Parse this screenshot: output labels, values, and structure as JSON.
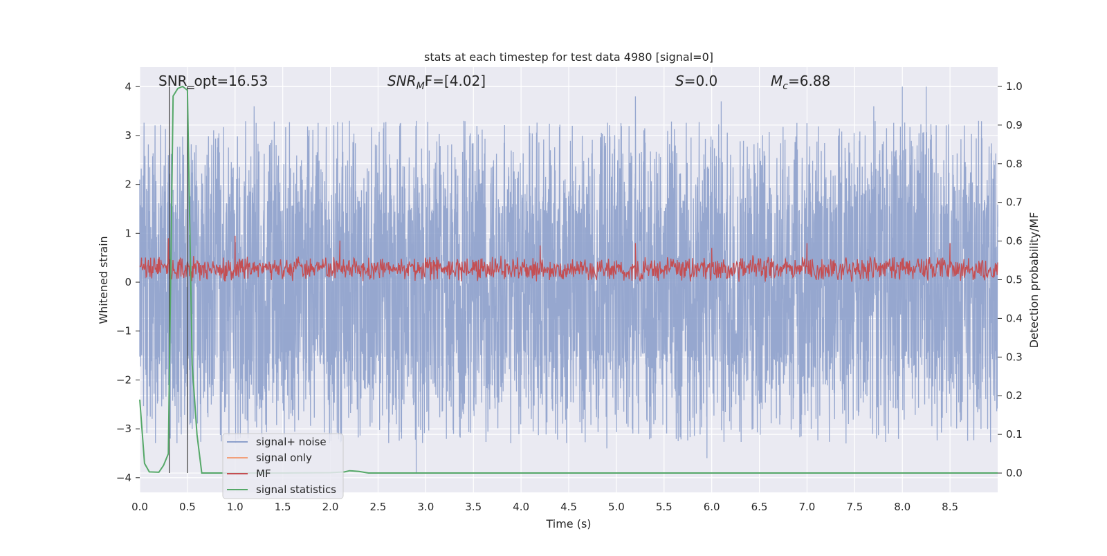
{
  "chart_data": {
    "type": "line",
    "title": "stats at each timestep for test data 4980 [signal=0]",
    "xlabel": "Time (s)",
    "ylabel": "Whitened strain",
    "y2label": "Detection probability/MF",
    "xlim": [
      0.0,
      9.0
    ],
    "ylim": [
      -4.3,
      4.4
    ],
    "y2lim": [
      -0.05,
      1.05
    ],
    "grid": true,
    "legend_position": "lower-left",
    "x_ticks": [
      "0.0",
      "0.5",
      "1.0",
      "1.5",
      "2.0",
      "2.5",
      "3.0",
      "3.5",
      "4.0",
      "4.5",
      "5.0",
      "5.5",
      "6.0",
      "6.5",
      "7.0",
      "7.5",
      "8.0",
      "8.5"
    ],
    "y_ticks": [
      "4",
      "3",
      "2",
      "1",
      "0",
      "−1",
      "−2",
      "−3",
      "−4"
    ],
    "y2_ticks": [
      "1.0",
      "0.9",
      "0.8",
      "0.7",
      "0.6",
      "0.5",
      "0.4",
      "0.3",
      "0.2",
      "0.1",
      "0.0"
    ],
    "annotations": {
      "snr_opt": "SNR_opt=16.53",
      "snr_mf_base": "SNR",
      "snr_mf_sub": "M",
      "snr_mf_tail": "F=[4.02]",
      "s_var": "S",
      "s_val": "=0.0",
      "mc_var": "M",
      "mc_sub": "c",
      "mc_val": "=6.88"
    },
    "vertical_lines_x": [
      0.31,
      0.5
    ],
    "series": [
      {
        "name": "signal+ noise",
        "color": "#8da0cb",
        "description_range": [
          -3.9,
          4.0
        ],
        "peak_samples": [
          [
            0.0,
            2.1
          ],
          [
            0.3,
            2.6
          ],
          [
            0.55,
            -3.0
          ],
          [
            1.2,
            3.6
          ],
          [
            2.2,
            3.3
          ],
          [
            2.9,
            -3.9
          ],
          [
            3.4,
            3.3
          ],
          [
            4.9,
            -3.4
          ],
          [
            5.2,
            3.8
          ],
          [
            5.95,
            -3.6
          ],
          [
            6.1,
            3.7
          ],
          [
            7.7,
            3.6
          ],
          [
            8.0,
            4.0
          ],
          [
            8.25,
            4.0
          ],
          [
            8.8,
            3.3
          ]
        ]
      },
      {
        "name": "signal only",
        "color": "#f2a07b",
        "values": []
      },
      {
        "name": "MF",
        "color": "#c44e52",
        "description_range": [
          0.0,
          0.95
        ],
        "peak_samples": [
          [
            0.3,
            0.9
          ],
          [
            1.0,
            0.95
          ],
          [
            1.2,
            0.2
          ],
          [
            2.1,
            0.85
          ],
          [
            3.0,
            0.5
          ],
          [
            4.2,
            0.75
          ],
          [
            5.2,
            0.8
          ],
          [
            6.0,
            0.7
          ],
          [
            7.0,
            0.8
          ],
          [
            8.5,
            0.8
          ]
        ]
      },
      {
        "name": "signal statistics",
        "color": "#55a868",
        "x": [
          0.0,
          0.05,
          0.1,
          0.2,
          0.25,
          0.3,
          0.35,
          0.4,
          0.45,
          0.5,
          0.55,
          0.6,
          0.65,
          0.8,
          1.0,
          1.5,
          2.0,
          2.15,
          2.2,
          2.3,
          2.4,
          3.0,
          4.0,
          5.0,
          6.0,
          7.0,
          8.0,
          9.0
        ],
        "y2": [
          0.19,
          0.025,
          0.003,
          0.002,
          0.02,
          0.05,
          0.975,
          0.995,
          1.0,
          0.99,
          0.28,
          0.1,
          0.0,
          0.0,
          0.0,
          0.0,
          0.001,
          0.003,
          0.006,
          0.004,
          0.0,
          0.0,
          0.0,
          0.0,
          0.0,
          0.0,
          0.0,
          0.0
        ]
      }
    ]
  }
}
